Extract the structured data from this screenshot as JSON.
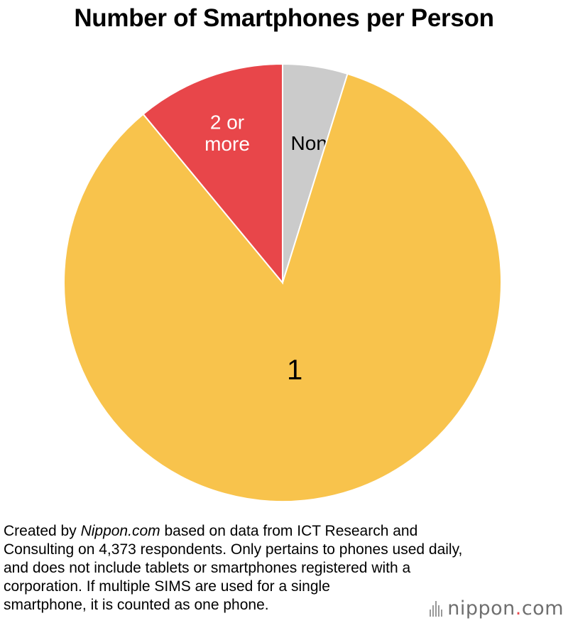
{
  "chart_data": {
    "type": "pie",
    "title": "Number of Smartphones per Person",
    "start_angle_deg": 0,
    "direction": "clockwise",
    "slices": [
      {
        "label": "None",
        "value": 4.8,
        "color": "#cbcbcb",
        "label_color": "#000000"
      },
      {
        "label": "1",
        "value": 84.2,
        "color": "#f8c34c",
        "label_color": "#000000"
      },
      {
        "label": "2 or more",
        "label_lines": [
          "2 or",
          "more"
        ],
        "value": 11.0,
        "color": "#e8464a",
        "label_color": "#ffffff"
      }
    ]
  },
  "source_note": {
    "line1_prefix": "Created by ",
    "line1_site": "Nippon.com",
    "line1_suffix": " based on data from ICT Research and",
    "line2": "Consulting on 4,373 respondents. Only pertains to phones used daily,",
    "line3": "and does not include tablets or smartphones registered with a",
    "line4": "corporation. If multiple SIMS are used for a single",
    "line5": "smartphone, it is counted as one phone."
  },
  "brand": {
    "name": "nippon",
    "dot": ".",
    "tld": "com"
  }
}
